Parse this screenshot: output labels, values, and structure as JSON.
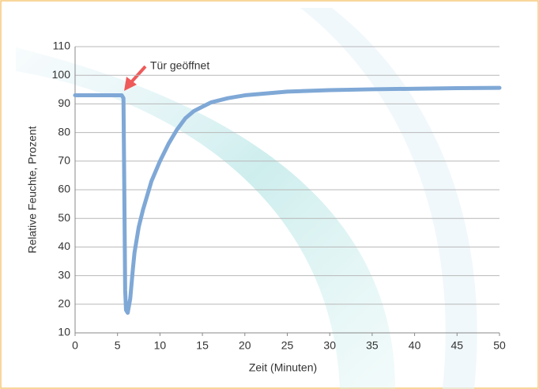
{
  "chart_data": {
    "type": "line",
    "xlabel": "Zeit (Minuten)",
    "ylabel": "Relative Feuchte, Prozent",
    "annotation": "Tür geöffnet",
    "x": [
      0,
      5.5,
      5.7,
      5.8,
      5.9,
      6,
      6.2,
      6.5,
      6.8,
      7,
      7.5,
      8,
      9,
      10,
      11,
      12,
      13,
      14,
      15,
      16,
      18,
      20,
      25,
      30,
      35,
      40,
      45,
      50
    ],
    "series": [
      {
        "color": "#7fa8d6",
        "values": [
          93,
          93,
          92,
          60,
          25,
          18,
          17,
          22,
          32,
          38,
          47,
          53,
          63,
          70,
          76,
          81,
          85,
          87.5,
          89,
          90.5,
          92,
          93,
          94.3,
          94.8,
          95.1,
          95.3,
          95.5,
          95.6
        ]
      }
    ],
    "xlim": [
      0,
      50
    ],
    "xticks": [
      0,
      5,
      10,
      15,
      20,
      25,
      30,
      35,
      40,
      45,
      50
    ],
    "ylim": [
      10,
      110
    ],
    "yticks": [
      10,
      20,
      30,
      40,
      50,
      60,
      70,
      80,
      90,
      100,
      110
    ],
    "grid": true
  }
}
